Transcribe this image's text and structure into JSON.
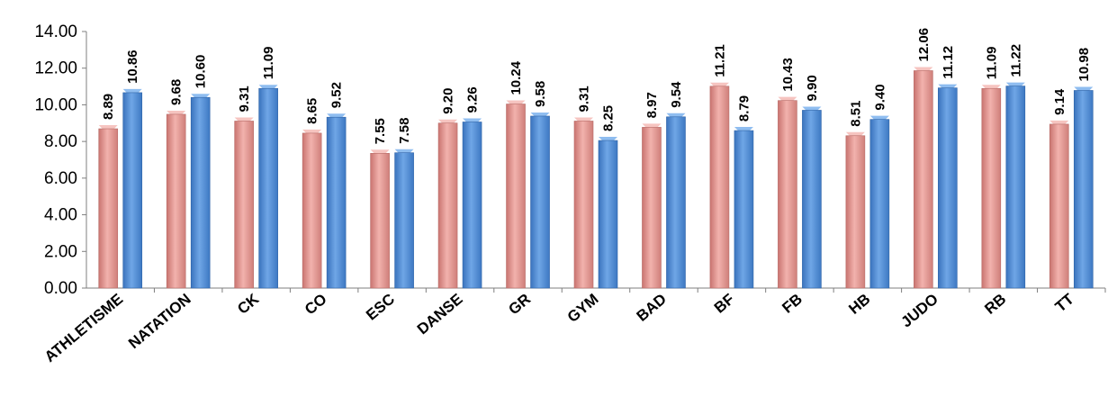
{
  "chart_data": {
    "type": "bar",
    "categories": [
      "ATHLETISME",
      "NATATION",
      "CK",
      "CO",
      "ESC",
      "DANSE",
      "GR",
      "GYM",
      "BAD",
      "BF",
      "FB",
      "HB",
      "JUDO",
      "RB",
      "TT"
    ],
    "series": [
      {
        "color": "#e0938f",
        "values": [
          8.89,
          9.68,
          9.31,
          8.65,
          7.55,
          9.2,
          10.24,
          9.31,
          8.97,
          11.21,
          10.43,
          8.51,
          12.06,
          11.09,
          9.14
        ],
        "labels": [
          "8.89",
          "9.68",
          "9.31",
          "8.65",
          "7.55",
          "9.20",
          "10.24",
          "9.31",
          "8.97",
          "11.21",
          "10.43",
          "8.51",
          "12.06",
          "11.09",
          "9.14"
        ]
      },
      {
        "color": "#4a86d0",
        "values": [
          10.86,
          10.6,
          11.09,
          9.52,
          7.58,
          9.26,
          9.58,
          8.25,
          9.54,
          8.79,
          9.9,
          9.4,
          11.12,
          11.22,
          10.98
        ],
        "labels": [
          "10.86",
          "10.60",
          "11.09",
          "9.52",
          "7.58",
          "9.26",
          "9.58",
          "8.25",
          "9.54",
          "8.79",
          "9.90",
          "9.40",
          "11.12",
          "11.22",
          "10.98"
        ]
      }
    ],
    "ylim": [
      0,
      14
    ],
    "yticks": [
      "0.00",
      "2.00",
      "4.00",
      "6.00",
      "8.00",
      "10.00",
      "12.00",
      "14.00"
    ],
    "grid": false,
    "legend": "none",
    "data_labels": "rotated-vertical-above-bars"
  }
}
